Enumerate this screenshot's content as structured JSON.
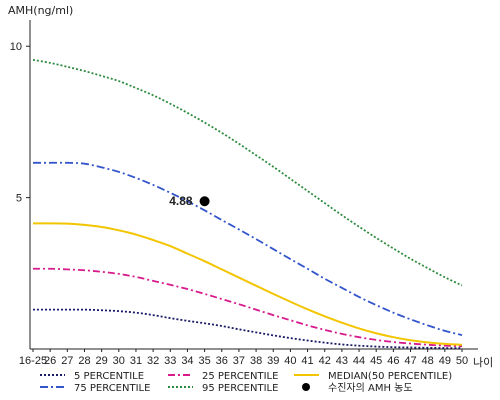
{
  "chart_data": {
    "type": "line",
    "ylabel": "AMH(ng/ml)",
    "xlabel": "나이",
    "ylim": [
      0,
      10.8
    ],
    "yticks": [
      {
        "value": 5,
        "label": "5"
      },
      {
        "value": 10,
        "label": "10"
      }
    ],
    "x_labels": [
      "16-25",
      "26",
      "27",
      "28",
      "29",
      "30",
      "31",
      "32",
      "33",
      "34",
      "35",
      "36",
      "37",
      "38",
      "39",
      "40",
      "41",
      "42",
      "43",
      "44",
      "45",
      "46",
      "47",
      "48",
      "49",
      "50"
    ],
    "series": [
      {
        "name": "5 PERCENTILE",
        "color": "#1a1a66",
        "dash": "2,2",
        "values": [
          1.3,
          1.3,
          1.3,
          1.3,
          1.28,
          1.25,
          1.2,
          1.12,
          1.02,
          0.93,
          0.85,
          0.76,
          0.65,
          0.55,
          0.45,
          0.36,
          0.28,
          0.21,
          0.15,
          0.11,
          0.08,
          0.06,
          0.05,
          0.04,
          0.03,
          0.03
        ]
      },
      {
        "name": "25 PERCENTILE",
        "color": "#d81b8c",
        "dash": "7,3,2,3",
        "values": [
          2.65,
          2.65,
          2.63,
          2.6,
          2.55,
          2.48,
          2.38,
          2.25,
          2.12,
          1.98,
          1.82,
          1.65,
          1.48,
          1.3,
          1.12,
          0.95,
          0.78,
          0.63,
          0.5,
          0.39,
          0.3,
          0.23,
          0.18,
          0.14,
          0.11,
          0.09
        ]
      },
      {
        "name": "MEDIAN(50 PERCENTILE)",
        "color": "#f2c500",
        "dash": "",
        "values": [
          4.15,
          4.15,
          4.14,
          4.1,
          4.03,
          3.92,
          3.78,
          3.6,
          3.4,
          3.15,
          2.9,
          2.63,
          2.36,
          2.09,
          1.82,
          1.56,
          1.31,
          1.08,
          0.87,
          0.68,
          0.52,
          0.39,
          0.29,
          0.22,
          0.17,
          0.14
        ]
      },
      {
        "name": "75 PERCENTILE",
        "color": "#3355cc",
        "dash": "8,3,2,3",
        "values": [
          6.15,
          6.15,
          6.15,
          6.12,
          6.0,
          5.85,
          5.65,
          5.42,
          5.16,
          4.88,
          4.58,
          4.26,
          3.95,
          3.63,
          3.3,
          2.97,
          2.65,
          2.32,
          2.02,
          1.72,
          1.45,
          1.2,
          0.98,
          0.78,
          0.6,
          0.46
        ]
      },
      {
        "name": "95 PERCENTILE",
        "color": "#2e8b3e",
        "dash": "2,2",
        "values": [
          9.55,
          9.45,
          9.32,
          9.18,
          9.02,
          8.85,
          8.62,
          8.38,
          8.1,
          7.8,
          7.48,
          7.14,
          6.78,
          6.4,
          6.02,
          5.62,
          5.22,
          4.82,
          4.42,
          4.04,
          3.67,
          3.32,
          2.98,
          2.67,
          2.37,
          2.1
        ]
      }
    ],
    "patient": {
      "x_label": "35",
      "value": 4.88,
      "value_label": "4.88",
      "legend_label": "수진자의 AMH 농도",
      "color": "#000000"
    },
    "legend": [
      {
        "label": "5 PERCENTILE",
        "color": "#1a1a66",
        "dash": "2,2"
      },
      {
        "label": "25 PERCENTILE",
        "color": "#d81b8c",
        "dash": "7,3,2,3"
      },
      {
        "label": "MEDIAN(50 PERCENTILE)",
        "color": "#f2c500",
        "dash": ""
      },
      {
        "label": "75 PERCENTILE",
        "color": "#3355cc",
        "dash": "8,3,2,3"
      },
      {
        "label": "95 PERCENTILE",
        "color": "#2e8b3e",
        "dash": "2,2"
      },
      {
        "label": "수진자의 AMH 농도",
        "color": "#000000",
        "marker": "dot"
      }
    ],
    "legend_placement": "bottom",
    "grid": false
  }
}
